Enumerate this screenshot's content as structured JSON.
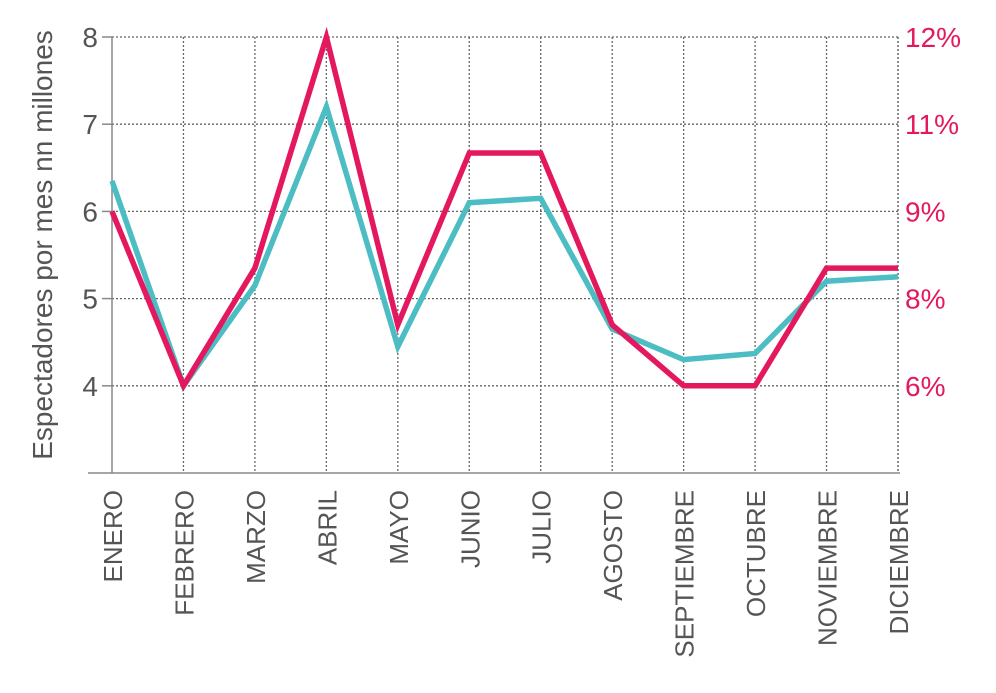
{
  "chart_data": {
    "type": "line",
    "categories": [
      "ENERO",
      "FEBRERO",
      "MARZO",
      "ABRIL",
      "MAYO",
      "JUNIO",
      "JULIO",
      "AGOSTO",
      "SEPTIEMBRE",
      "OCTUBRE",
      "NOVIEMBRE",
      "DICIEMBRE"
    ],
    "ylabel": "Espectadores por mes nn millones",
    "ylim": [
      3,
      8
    ],
    "yticks": [
      "4",
      "5",
      "6",
      "7",
      "8"
    ],
    "y2ticks": [
      "6%",
      "8%",
      "9%",
      "11%",
      "12%"
    ],
    "grid": true,
    "series": [
      {
        "axis": "left",
        "color": "#4cbdc2",
        "values": [
          6.35,
          4.0,
          5.15,
          7.2,
          4.45,
          6.1,
          6.15,
          4.65,
          4.3,
          4.37,
          5.2,
          5.25
        ]
      },
      {
        "axis": "left",
        "color": "#e3185f",
        "values": [
          6.0,
          4.0,
          5.35,
          8.0,
          4.7,
          6.67,
          6.67,
          4.7,
          4.0,
          4.0,
          5.35,
          5.35
        ]
      }
    ]
  }
}
